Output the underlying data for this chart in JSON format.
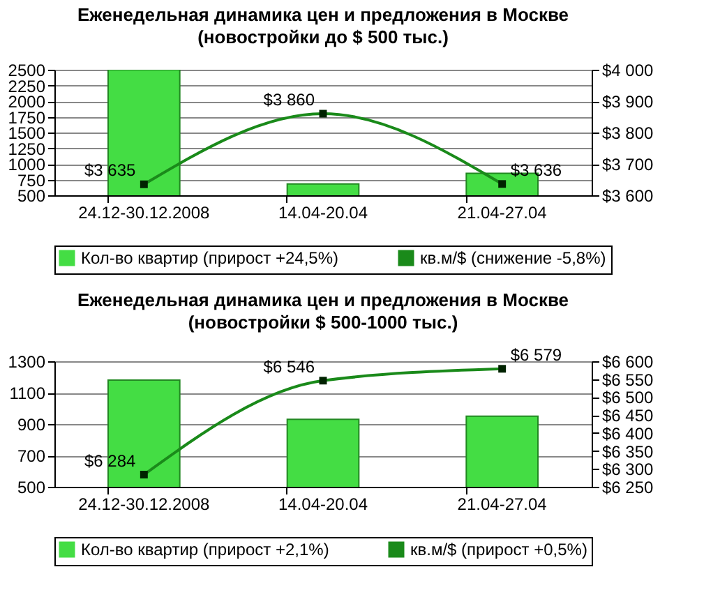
{
  "chart_data": [
    {
      "type": "bar",
      "title": "Еженедельная динамика цен и предложения в Москве",
      "subtitle": "(новостройки до $ 500 тыс.)",
      "categories": [
        "24.12-30.12.2008",
        "14.04-20.04",
        "21.04-27.04"
      ],
      "series": [
        {
          "name": "Кол-во квартир (прирост +24,5%)",
          "color": "#44dd44",
          "values": [
            2500,
            680,
            850
          ]
        },
        {
          "name": "кв.м/$ (снижение -5,8%)",
          "type": "line",
          "axis": "y2",
          "color": "#1a8a1a",
          "values": [
            3635,
            3860,
            3636
          ],
          "value_labels": [
            "$3 635",
            "$3 860",
            "$3 636"
          ]
        }
      ],
      "ylim": [
        500,
        2500
      ],
      "yticks": [
        500,
        750,
        1000,
        1250,
        1500,
        1750,
        2000,
        2250,
        2500
      ],
      "y2lim": [
        3600,
        4000
      ],
      "y2ticks": [
        {
          "value": 3600,
          "label": "$3 600"
        },
        {
          "value": 3700,
          "label": "$3 700"
        },
        {
          "value": 3800,
          "label": "$3 800"
        },
        {
          "value": 3900,
          "label": "$3 900"
        },
        {
          "value": 4000,
          "label": "$4 000"
        }
      ],
      "grid": "y",
      "legend": "bottom",
      "marker": "square",
      "line_style": "solid"
    },
    {
      "type": "bar",
      "title": "Еженедельная динамика цен и предложения в Москве",
      "subtitle": "(новостройки  $ 500-1000 тыс.)",
      "categories": [
        "24.12-30.12.2008",
        "14.04-20.04",
        "21.04-27.04"
      ],
      "series": [
        {
          "name": "Кол-во квартир (прирост +2,1%)",
          "color": "#44dd44",
          "values": [
            1180,
            930,
            950
          ]
        },
        {
          "name": "кв.м/$ (прирост +0,5%)",
          "type": "line",
          "axis": "y2",
          "color": "#1a8a1a",
          "values": [
            6284,
            6546,
            6579
          ],
          "value_labels": [
            "$6 284",
            "$6 546",
            "$6 579"
          ]
        }
      ],
      "ylim": [
        500,
        1300
      ],
      "yticks": [
        500,
        700,
        900,
        1100,
        1300
      ],
      "y2lim": [
        6250,
        6600
      ],
      "y2ticks": [
        {
          "value": 6250,
          "label": "$6 250"
        },
        {
          "value": 6300,
          "label": "$6 300"
        },
        {
          "value": 6350,
          "label": "$6 350"
        },
        {
          "value": 6400,
          "label": "$6 400"
        },
        {
          "value": 6450,
          "label": "$6 450"
        },
        {
          "value": 6500,
          "label": "$6 500"
        },
        {
          "value": 6550,
          "label": "$6 550"
        },
        {
          "value": 6600,
          "label": "$6 600"
        }
      ],
      "grid": "y",
      "legend": "bottom",
      "marker": "square",
      "line_style": "solid"
    }
  ]
}
